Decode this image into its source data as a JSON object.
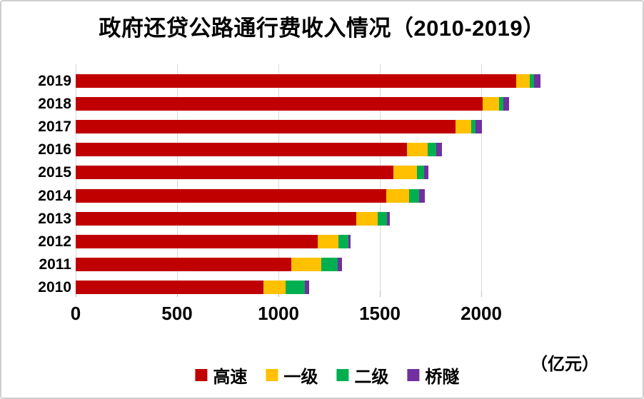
{
  "title": "政府还贷公路通行费收入情况（2010-2019）",
  "unit_label": "（亿元）",
  "chart_data": {
    "type": "bar",
    "orientation": "horizontal",
    "stacked": true,
    "title": "政府还贷公路通行费收入情况（2010-2019）",
    "unit": "亿元",
    "categories_top_to_bottom": [
      "2019",
      "2018",
      "2017",
      "2016",
      "2015",
      "2014",
      "2013",
      "2012",
      "2011",
      "2010"
    ],
    "series": [
      {
        "name": "高速",
        "color": "#C00000",
        "values_by_row": [
          2172,
          2008,
          1873,
          1635,
          1568,
          1533,
          1384,
          1195,
          1063,
          927
        ]
      },
      {
        "name": "一级",
        "color": "#FFC000",
        "values_by_row": [
          68,
          79,
          78,
          102,
          114,
          113,
          104,
          100,
          147,
          109
        ]
      },
      {
        "name": "二级",
        "color": "#00B050",
        "values_by_row": [
          21,
          21,
          21,
          41,
          36,
          46,
          47,
          49,
          81,
          94
        ]
      },
      {
        "name": "桥隧",
        "color": "#7030A0",
        "values_by_row": [
          33,
          29,
          30,
          28,
          22,
          31,
          14,
          13,
          23,
          20
        ]
      }
    ],
    "totals_top_to_bottom": [
      2294,
      2137,
      2002,
      1806,
      1740,
      1722,
      1549,
      1357,
      1314,
      1150
    ],
    "x_ticks": [
      0,
      500,
      1000,
      1500,
      2000
    ],
    "x_tick_labels": [
      "0",
      "500",
      "1000",
      "1500",
      "2000"
    ],
    "xlim": [
      0,
      2730
    ],
    "grid": true,
    "grid_color": "#d9d9d9",
    "legend_position": "bottom"
  }
}
